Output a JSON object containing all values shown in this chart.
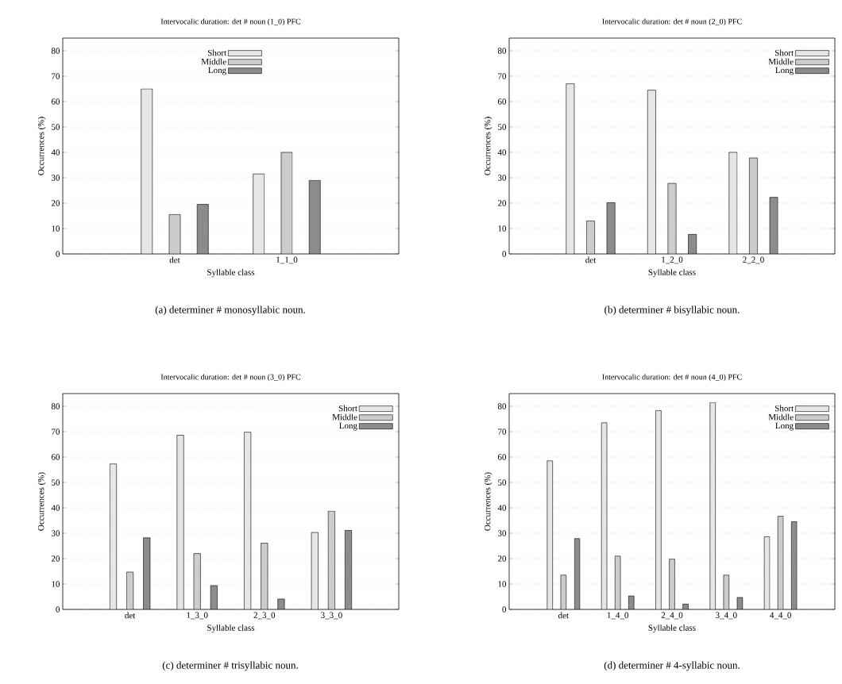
{
  "chart_data": [
    {
      "type": "bar",
      "title": "Intervocalic duration: det # noun (1_0) PFC",
      "xlabel": "Syllable class",
      "ylabel": "Occurrences (%)",
      "categories": [
        "det",
        "1_1_0"
      ],
      "series": [
        {
          "name": "Short",
          "color": "#e6e6e6",
          "values": [
            65,
            31.5
          ]
        },
        {
          "name": "Middle",
          "color": "#cccccc",
          "values": [
            15.5,
            40
          ]
        },
        {
          "name": "Long",
          "color": "#8c8c8c",
          "values": [
            19.5,
            29
          ]
        }
      ],
      "ylim": [
        0,
        85
      ],
      "yticks": [
        0,
        10,
        20,
        30,
        40,
        50,
        60,
        70,
        80
      ],
      "grid": "y",
      "legend": "top",
      "annotations": [
        "(a)  determiner # monosyllabic noun."
      ]
    },
    {
      "type": "bar",
      "title": "Intervocalic duration: det # noun (2_0) PFC",
      "xlabel": "Syllable class",
      "ylabel": "Occurrences (%)",
      "categories": [
        "det",
        "1_2_0",
        "2_2_0"
      ],
      "series": [
        {
          "name": "Short",
          "color": "#e6e6e6",
          "values": [
            67,
            64.5,
            40
          ]
        },
        {
          "name": "Middle",
          "color": "#cccccc",
          "values": [
            13,
            27.8,
            37.8
          ]
        },
        {
          "name": "Long",
          "color": "#8c8c8c",
          "values": [
            20.2,
            7.7,
            22.3
          ]
        }
      ],
      "ylim": [
        0,
        85
      ],
      "yticks": [
        0,
        10,
        20,
        30,
        40,
        50,
        60,
        70,
        80
      ],
      "grid": "y",
      "legend": "top right",
      "annotations": [
        "(b)  determiner # bisyllabic noun."
      ]
    },
    {
      "type": "bar",
      "title": "Intervocalic duration: det # noun (3_0) PFC",
      "xlabel": "Syllable class",
      "ylabel": "Occurrences (%)",
      "categories": [
        "det",
        "1_3_0",
        "2_3_0",
        "3_3_0"
      ],
      "series": [
        {
          "name": "Short",
          "color": "#e6e6e6",
          "values": [
            57.3,
            68.6,
            69.8,
            30.3
          ]
        },
        {
          "name": "Middle",
          "color": "#cccccc",
          "values": [
            14.7,
            22,
            26.1,
            38.7
          ]
        },
        {
          "name": "Long",
          "color": "#8c8c8c",
          "values": [
            28.2,
            9.4,
            4.1,
            31.1
          ]
        }
      ],
      "ylim": [
        0,
        85
      ],
      "yticks": [
        0,
        10,
        20,
        30,
        40,
        50,
        60,
        70,
        80
      ],
      "grid": "y",
      "legend": "top right",
      "annotations": [
        "(c)  determiner # trisyllabic noun."
      ]
    },
    {
      "type": "bar",
      "title": "Intervocalic duration: det # noun (4_0) PFC",
      "xlabel": "Syllable class",
      "ylabel": "Occurrences (%)",
      "categories": [
        "det",
        "1_4_0",
        "2_4_0",
        "3_4_0",
        "4_4_0"
      ],
      "series": [
        {
          "name": "Short",
          "color": "#e6e6e6",
          "values": [
            58.5,
            73.5,
            78.3,
            81.5,
            28.6
          ]
        },
        {
          "name": "Middle",
          "color": "#cccccc",
          "values": [
            13.5,
            21,
            19.8,
            13.5,
            36.7
          ]
        },
        {
          "name": "Long",
          "color": "#8c8c8c",
          "values": [
            27.9,
            5.3,
            2.1,
            4.7,
            34.6
          ]
        }
      ],
      "ylim": [
        0,
        85
      ],
      "yticks": [
        0,
        10,
        20,
        30,
        40,
        50,
        60,
        70,
        80
      ],
      "grid": "y",
      "legend": "top right",
      "annotations": [
        "(d)  determiner # 4-syllabic noun."
      ]
    }
  ]
}
